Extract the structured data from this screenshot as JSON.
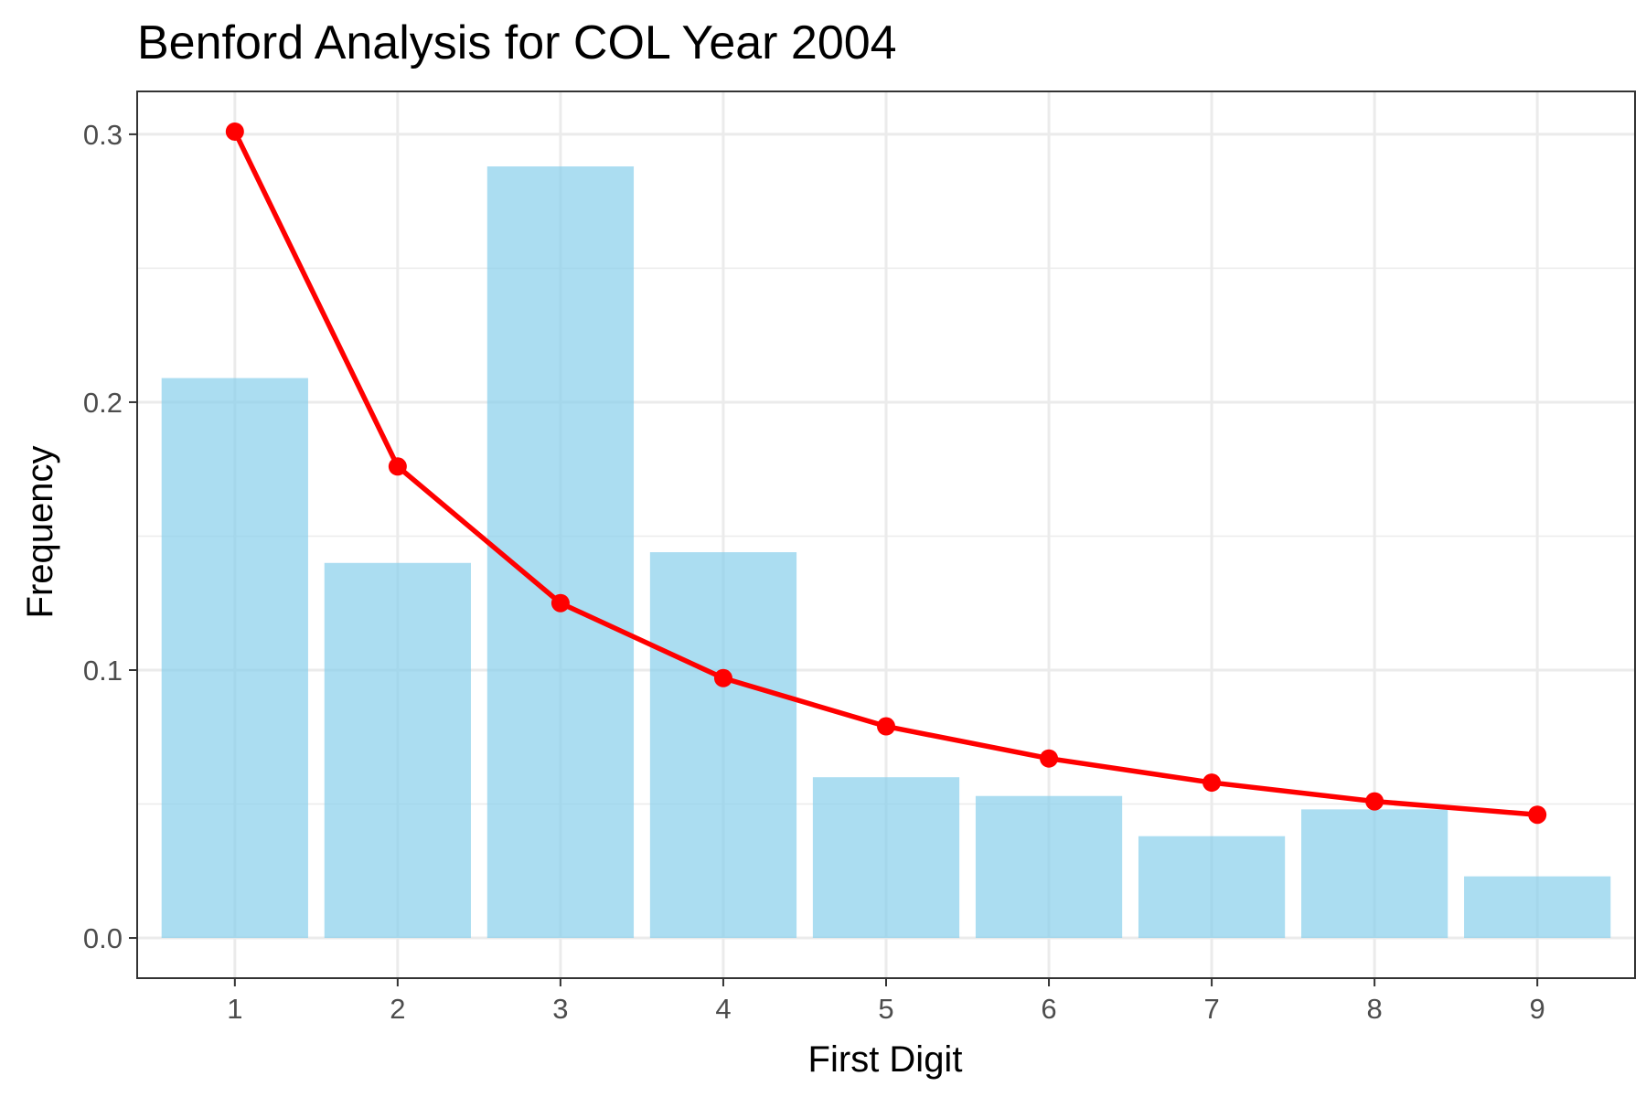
{
  "chart_data": {
    "type": "bar",
    "title": "Benford Analysis for COL Year 2004",
    "xlabel": "First Digit",
    "ylabel": "Frequency",
    "categories": [
      "1",
      "2",
      "3",
      "4",
      "5",
      "6",
      "7",
      "8",
      "9"
    ],
    "series": [
      {
        "type": "bar",
        "values": [
          0.209,
          0.14,
          0.288,
          0.144,
          0.06,
          0.053,
          0.038,
          0.048,
          0.023
        ]
      },
      {
        "type": "line",
        "values": [
          0.301,
          0.176,
          0.125,
          0.097,
          0.079,
          0.067,
          0.058,
          0.051,
          0.046
        ]
      }
    ],
    "ylim": [
      -0.015,
      0.316
    ],
    "yticks": [
      0.0,
      0.1,
      0.2,
      0.3
    ],
    "ytick_labels": [
      "0.0",
      "0.1",
      "0.2",
      "0.3"
    ],
    "y_minor_ticks": [
      0.05,
      0.15,
      0.25
    ],
    "grid": true,
    "legend": "none",
    "colors": {
      "bar": "#87ceeb",
      "line": "#ff0000",
      "grid": "#ebebeb",
      "panel_border": "#333333"
    }
  }
}
